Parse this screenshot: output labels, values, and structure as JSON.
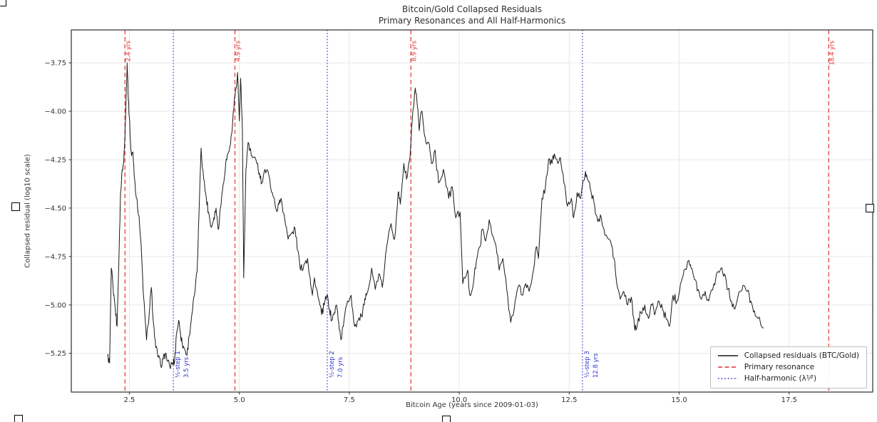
{
  "figure": {
    "title_line1": "Bitcoin/Gold Collapsed Residuals",
    "title_line2": "Primary Resonances and All Half-Harmonics",
    "xlabel": "Bitcoin Age (years since 2009-01-03)",
    "ylabel": "Collapsed residual (log10 scale)"
  },
  "legend": {
    "position": "lower right",
    "items": [
      {
        "label": "Collapsed residuals (BTC/Gold)",
        "style": "solid",
        "color": "#1a1a1a",
        "name": "legend-swatch-residuals"
      },
      {
        "label": "Primary resonance",
        "style": "dashed",
        "color": "#e62e2e",
        "name": "legend-swatch-primary-resonance"
      },
      {
        "label": "Half-harmonic (λ¹⁄²)",
        "style": "dotted",
        "color": "#3434cf",
        "name": "legend-swatch-half-harmonic"
      }
    ]
  },
  "artifacts": {
    "selection_handles": [
      "top-left",
      "left-middle",
      "right-middle",
      "bottom-left",
      "bottom-center"
    ]
  },
  "chart_data": {
    "type": "line",
    "title": "Bitcoin/Gold Collapsed Residuals — Primary Resonances and All Half-Harmonics",
    "xlabel": "Bitcoin Age (years since 2009-01-03)",
    "ylabel": "Collapsed residual (log10 scale)",
    "xlim": [
      1.18,
      19.4
    ],
    "ylim": [
      -5.45,
      -3.58
    ],
    "grid": true,
    "grid_color": "#e7e7e7",
    "x_ticks": [
      2.5,
      5.0,
      7.5,
      10.0,
      12.5,
      15.0,
      17.5
    ],
    "x_tick_labels": [
      "2.5",
      "5.0",
      "7.5",
      "10.0",
      "12.5",
      "15.0",
      "17.5"
    ],
    "y_ticks": [
      -3.75,
      -4.0,
      -4.25,
      -4.5,
      -4.75,
      -5.0,
      -5.25
    ],
    "y_tick_labels": [
      "−3.75",
      "−4.00",
      "−4.25",
      "−4.50",
      "−4.75",
      "−5.00",
      "−5.25"
    ],
    "vlines": [
      {
        "group": "primary_resonance",
        "style": "dashed",
        "color": "#e62e2e",
        "positions": [
          2.4,
          4.9,
          8.9,
          18.4
        ],
        "labels": [
          "2.4 yrs",
          "4.9 yrs",
          "8.9 yrs",
          "18.4 yrs"
        ]
      },
      {
        "group": "half_harmonic",
        "style": "dotted",
        "color": "#3434cf",
        "positions": [
          3.5,
          7.0,
          12.8
        ],
        "labels": [
          "½-step 1",
          "½-step 2",
          "½-step 3"
        ],
        "sub_labels": [
          "3.5 yrs",
          "7.0 yrs",
          "12.8 yrs"
        ]
      }
    ],
    "series": [
      {
        "name": "Collapsed residuals (BTC/Gold)",
        "color": "#1a1a1a",
        "points": [
          [
            2.0,
            -5.26
          ],
          [
            2.05,
            -5.3
          ],
          [
            2.09,
            -4.81
          ],
          [
            2.14,
            -4.95
          ],
          [
            2.18,
            -5.02
          ],
          [
            2.22,
            -5.11
          ],
          [
            2.27,
            -4.7
          ],
          [
            2.3,
            -4.42
          ],
          [
            2.34,
            -4.3
          ],
          [
            2.37,
            -4.27
          ],
          [
            2.41,
            -4.05
          ],
          [
            2.45,
            -3.75
          ],
          [
            2.48,
            -3.95
          ],
          [
            2.5,
            -4.03
          ],
          [
            2.53,
            -4.18
          ],
          [
            2.55,
            -4.23
          ],
          [
            2.58,
            -4.21
          ],
          [
            2.62,
            -4.35
          ],
          [
            2.66,
            -4.45
          ],
          [
            2.72,
            -4.54
          ],
          [
            2.78,
            -4.75
          ],
          [
            2.82,
            -4.95
          ],
          [
            2.89,
            -5.18
          ],
          [
            2.95,
            -5.05
          ],
          [
            3.0,
            -4.91
          ],
          [
            3.05,
            -5.1
          ],
          [
            3.1,
            -5.22
          ],
          [
            3.16,
            -5.27
          ],
          [
            3.21,
            -5.31
          ],
          [
            3.27,
            -5.28
          ],
          [
            3.32,
            -5.25
          ],
          [
            3.37,
            -5.29
          ],
          [
            3.42,
            -5.32
          ],
          [
            3.48,
            -5.3
          ],
          [
            3.53,
            -5.29
          ],
          [
            3.57,
            -5.15
          ],
          [
            3.62,
            -5.08
          ],
          [
            3.66,
            -5.14
          ],
          [
            3.7,
            -5.2
          ],
          [
            3.76,
            -5.23
          ],
          [
            3.81,
            -5.26
          ],
          [
            3.86,
            -5.16
          ],
          [
            3.92,
            -5.05
          ],
          [
            3.98,
            -4.95
          ],
          [
            4.04,
            -4.83
          ],
          [
            4.08,
            -4.55
          ],
          [
            4.13,
            -4.19
          ],
          [
            4.19,
            -4.35
          ],
          [
            4.25,
            -4.45
          ],
          [
            4.3,
            -4.52
          ],
          [
            4.36,
            -4.6
          ],
          [
            4.42,
            -4.55
          ],
          [
            4.47,
            -4.5
          ],
          [
            4.52,
            -4.61
          ],
          [
            4.57,
            -4.5
          ],
          [
            4.63,
            -4.38
          ],
          [
            4.69,
            -4.27
          ],
          [
            4.74,
            -4.22
          ],
          [
            4.8,
            -4.17
          ],
          [
            4.85,
            -4.05
          ],
          [
            4.9,
            -3.92
          ],
          [
            4.96,
            -3.8
          ],
          [
            5.0,
            -4.05
          ],
          [
            5.03,
            -3.83
          ],
          [
            5.07,
            -4.1
          ],
          [
            5.1,
            -4.86
          ],
          [
            5.15,
            -4.3
          ],
          [
            5.2,
            -4.16
          ],
          [
            5.24,
            -4.2
          ],
          [
            5.3,
            -4.24
          ],
          [
            5.4,
            -4.27
          ],
          [
            5.46,
            -4.32
          ],
          [
            5.51,
            -4.37
          ],
          [
            5.58,
            -4.3
          ],
          [
            5.67,
            -4.33
          ],
          [
            5.75,
            -4.42
          ],
          [
            5.84,
            -4.51
          ],
          [
            5.9,
            -4.48
          ],
          [
            5.95,
            -4.45
          ],
          [
            6.03,
            -4.55
          ],
          [
            6.11,
            -4.66
          ],
          [
            6.19,
            -4.63
          ],
          [
            6.27,
            -4.61
          ],
          [
            6.33,
            -4.72
          ],
          [
            6.39,
            -4.82
          ],
          [
            6.47,
            -4.79
          ],
          [
            6.55,
            -4.76
          ],
          [
            6.61,
            -4.86
          ],
          [
            6.66,
            -4.95
          ],
          [
            6.71,
            -4.86
          ],
          [
            6.79,
            -4.96
          ],
          [
            6.87,
            -5.05
          ],
          [
            6.93,
            -5.0
          ],
          [
            6.99,
            -4.95
          ],
          [
            7.05,
            -5.02
          ],
          [
            7.1,
            -5.08
          ],
          [
            7.16,
            -5.04
          ],
          [
            7.21,
            -5.0
          ],
          [
            7.26,
            -5.09
          ],
          [
            7.31,
            -5.18
          ],
          [
            7.38,
            -5.08
          ],
          [
            7.46,
            -4.98
          ],
          [
            7.54,
            -4.95
          ],
          [
            7.62,
            -5.11
          ],
          [
            7.7,
            -5.08
          ],
          [
            7.78,
            -5.06
          ],
          [
            7.84,
            -5.0
          ],
          [
            7.89,
            -4.95
          ],
          [
            8.01,
            -4.81
          ],
          [
            8.09,
            -4.92
          ],
          [
            8.17,
            -4.84
          ],
          [
            8.25,
            -4.91
          ],
          [
            8.35,
            -4.7
          ],
          [
            8.45,
            -4.58
          ],
          [
            8.53,
            -4.66
          ],
          [
            8.61,
            -4.42
          ],
          [
            8.66,
            -4.48
          ],
          [
            8.74,
            -4.27
          ],
          [
            8.8,
            -4.35
          ],
          [
            8.88,
            -4.24
          ],
          [
            8.93,
            -4.05
          ],
          [
            9.0,
            -3.88
          ],
          [
            9.05,
            -3.98
          ],
          [
            9.09,
            -4.1
          ],
          [
            9.14,
            -4.0
          ],
          [
            9.19,
            -4.08
          ],
          [
            9.24,
            -4.16
          ],
          [
            9.32,
            -4.17
          ],
          [
            9.37,
            -4.27
          ],
          [
            9.45,
            -4.2
          ],
          [
            9.53,
            -4.37
          ],
          [
            9.64,
            -4.3
          ],
          [
            9.76,
            -4.45
          ],
          [
            9.84,
            -4.39
          ],
          [
            9.92,
            -4.55
          ],
          [
            10.02,
            -4.52
          ],
          [
            10.08,
            -4.89
          ],
          [
            10.19,
            -4.82
          ],
          [
            10.24,
            -4.95
          ],
          [
            10.32,
            -4.89
          ],
          [
            10.39,
            -4.77
          ],
          [
            10.47,
            -4.7
          ],
          [
            10.52,
            -4.61
          ],
          [
            10.6,
            -4.67
          ],
          [
            10.68,
            -4.56
          ],
          [
            10.75,
            -4.64
          ],
          [
            10.84,
            -4.7
          ],
          [
            10.91,
            -4.82
          ],
          [
            10.99,
            -4.76
          ],
          [
            11.08,
            -4.92
          ],
          [
            11.17,
            -5.09
          ],
          [
            11.27,
            -4.98
          ],
          [
            11.35,
            -4.9
          ],
          [
            11.43,
            -4.95
          ],
          [
            11.51,
            -4.89
          ],
          [
            11.59,
            -4.93
          ],
          [
            11.67,
            -4.84
          ],
          [
            11.75,
            -4.7
          ],
          [
            11.8,
            -4.76
          ],
          [
            11.88,
            -4.45
          ],
          [
            11.96,
            -4.39
          ],
          [
            12.03,
            -4.25
          ],
          [
            12.11,
            -4.27
          ],
          [
            12.16,
            -4.22
          ],
          [
            12.24,
            -4.27
          ],
          [
            12.3,
            -4.24
          ],
          [
            12.38,
            -4.37
          ],
          [
            12.46,
            -4.49
          ],
          [
            12.55,
            -4.45
          ],
          [
            12.6,
            -4.55
          ],
          [
            12.68,
            -4.42
          ],
          [
            12.76,
            -4.45
          ],
          [
            12.87,
            -4.31
          ],
          [
            12.92,
            -4.35
          ],
          [
            13.0,
            -4.42
          ],
          [
            13.08,
            -4.49
          ],
          [
            13.15,
            -4.57
          ],
          [
            13.23,
            -4.55
          ],
          [
            13.31,
            -4.64
          ],
          [
            13.44,
            -4.67
          ],
          [
            13.52,
            -4.76
          ],
          [
            13.58,
            -4.89
          ],
          [
            13.66,
            -4.97
          ],
          [
            13.74,
            -4.93
          ],
          [
            13.83,
            -5.0
          ],
          [
            13.91,
            -4.96
          ],
          [
            13.99,
            -5.13
          ],
          [
            14.05,
            -5.1
          ],
          [
            14.13,
            -5.04
          ],
          [
            14.22,
            -5.0
          ],
          [
            14.3,
            -5.07
          ],
          [
            14.38,
            -5.0
          ],
          [
            14.46,
            -5.04
          ],
          [
            14.54,
            -4.98
          ],
          [
            14.62,
            -5.02
          ],
          [
            14.7,
            -5.07
          ],
          [
            14.78,
            -5.11
          ],
          [
            14.86,
            -4.95
          ],
          [
            14.95,
            -4.98
          ],
          [
            15.03,
            -4.89
          ],
          [
            15.11,
            -4.82
          ],
          [
            15.22,
            -4.77
          ],
          [
            15.27,
            -4.81
          ],
          [
            15.35,
            -4.87
          ],
          [
            15.43,
            -4.92
          ],
          [
            15.51,
            -4.97
          ],
          [
            15.59,
            -4.93
          ],
          [
            15.67,
            -4.98
          ],
          [
            15.79,
            -4.89
          ],
          [
            15.87,
            -4.83
          ],
          [
            15.95,
            -4.81
          ],
          [
            16.03,
            -4.84
          ],
          [
            16.11,
            -4.92
          ],
          [
            16.19,
            -4.98
          ],
          [
            16.27,
            -5.02
          ],
          [
            16.39,
            -4.93
          ],
          [
            16.47,
            -4.9
          ],
          [
            16.55,
            -4.93
          ],
          [
            16.63,
            -4.98
          ],
          [
            16.71,
            -5.03
          ],
          [
            16.79,
            -5.07
          ],
          [
            16.92,
            -5.12
          ]
        ]
      }
    ]
  }
}
